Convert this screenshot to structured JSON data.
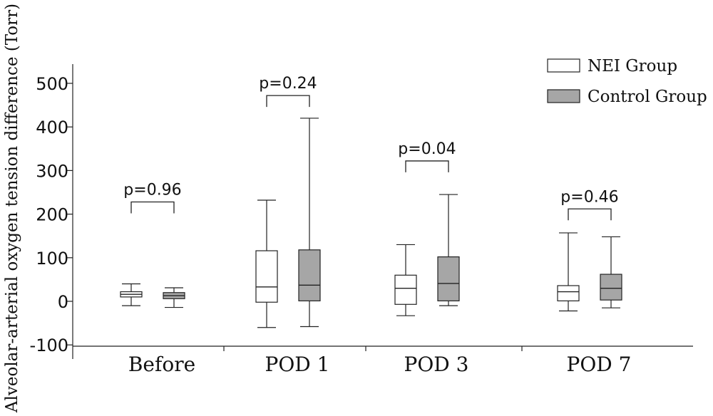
{
  "chart_data": {
    "type": "box",
    "ylabel": "Alveolar-arterial oxygen tension difference (Torr)",
    "xlabel": "",
    "ylim": [
      -100,
      550
    ],
    "yticks": [
      -100,
      0,
      100,
      200,
      300,
      400,
      500
    ],
    "categories": [
      "Before",
      "POD 1",
      "POD 3",
      "POD 7"
    ],
    "legend_position": "top-right",
    "series": [
      {
        "name": "NEI Group",
        "color": "#ffffff",
        "boxes": [
          {
            "min": -10,
            "q1": 10,
            "median": 16,
            "q3": 22,
            "max": 40
          },
          {
            "min": -60,
            "q1": -2,
            "median": 33,
            "q3": 116,
            "max": 232
          },
          {
            "min": -33,
            "q1": -7,
            "median": 30,
            "q3": 60,
            "max": 130
          },
          {
            "min": -22,
            "q1": 1,
            "median": 22,
            "q3": 36,
            "max": 157
          }
        ]
      },
      {
        "name": "Control Group",
        "color": "#a6a6a6",
        "boxes": [
          {
            "min": -14,
            "q1": 6,
            "median": 13,
            "q3": 20,
            "max": 31
          },
          {
            "min": -58,
            "q1": 1,
            "median": 37,
            "q3": 118,
            "max": 420
          },
          {
            "min": -10,
            "q1": 1,
            "median": 41,
            "q3": 102,
            "max": 245
          },
          {
            "min": -15,
            "q1": 3,
            "median": 30,
            "q3": 62,
            "max": 148
          }
        ]
      }
    ],
    "annotations": [
      {
        "category": "Before",
        "text": "p=0.96",
        "bracket_y": 228
      },
      {
        "category": "POD 1",
        "text": "p=0.24",
        "bracket_y": 472
      },
      {
        "category": "POD 3",
        "text": "p=0.04",
        "bracket_y": 322
      },
      {
        "category": "POD 7",
        "text": "p=0.46",
        "bracket_y": 212
      }
    ]
  }
}
